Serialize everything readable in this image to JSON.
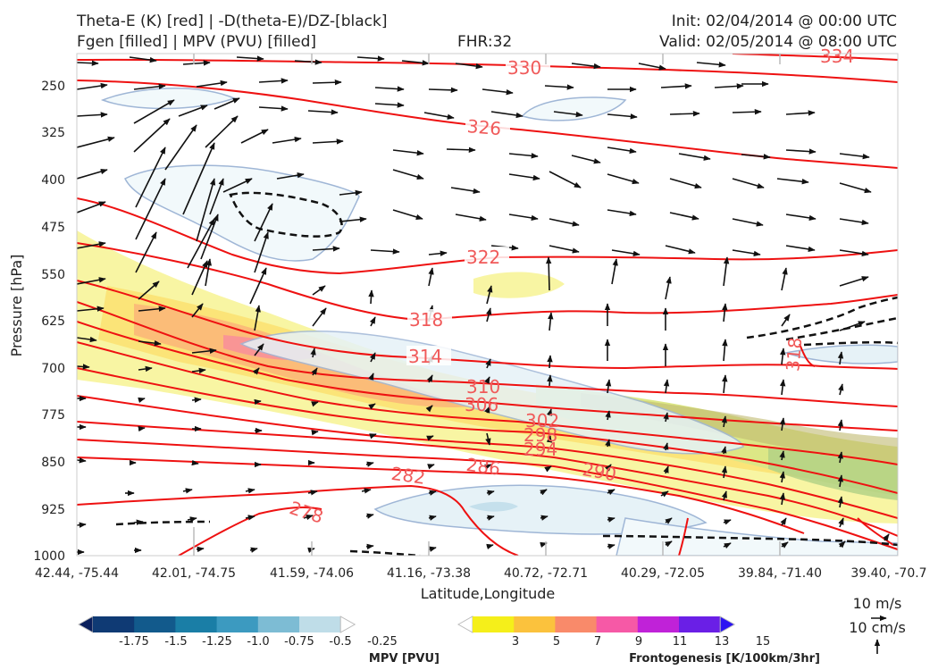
{
  "header": {
    "left_line1": "Theta-E (K) [red] | -D(theta-E)/DZ-[black]",
    "left_line2": "Fgen [filled] | MPV (PVU) [filled]",
    "center": "FHR:32",
    "right_line1": "Init: 02/04/2014 @ 00:00 UTC",
    "right_line2": "Valid: 02/05/2014 @ 08:00 UTC"
  },
  "chart_data": {
    "type": "cross-section",
    "ylabel": "Pressure [hPa]",
    "xlabel": "Latitude,Longitude",
    "yticks": [
      "250",
      "325",
      "400",
      "475",
      "550",
      "625",
      "700",
      "775",
      "850",
      "925",
      "1000"
    ],
    "ylim": [
      1000,
      200
    ],
    "xticks": [
      "42.44, -75.44",
      "42.01, -74.75",
      "41.59, -74.06",
      "41.16, -73.38",
      "40.72, -72.71",
      "40.29, -72.05",
      "39.84, -71.40",
      "39.40, -70.7"
    ],
    "theta_e_contour_labels": [
      "330",
      "334",
      "326",
      "322",
      "318",
      "314",
      "310",
      "306",
      "302",
      "298",
      "294",
      "290",
      "286",
      "282",
      "278",
      "318"
    ],
    "colors": {
      "theta_e": "#ee1111",
      "label": "#f05a5a",
      "stability": "#111111"
    },
    "mpv_colorbar": {
      "title": "MPV [PVU]",
      "labels": [
        "-1.75",
        "-1.5",
        "-1.25",
        "-1.0",
        "-0.75",
        "-0.5",
        "-0.25"
      ],
      "colors": [
        "#0a1f5c",
        "#0f3a74",
        "#125a8c",
        "#1a7ea6",
        "#3c9ac0",
        "#7dbcd4",
        "#bfdde8",
        "#ffffff"
      ]
    },
    "fgen_colorbar": {
      "title": "Frontogenesis [K/100km/3hr]",
      "labels": [
        "3",
        "5",
        "7",
        "9",
        "11",
        "13",
        "15"
      ],
      "colors": [
        "#ffffff",
        "#f5ef1a",
        "#fbc23d",
        "#f98a6a",
        "#f659a6",
        "#c022d8",
        "#6a1fe6",
        "#2b14f2"
      ]
    },
    "vector_reference": {
      "horizontal": "10 m/s",
      "vertical": "10 cm/s"
    }
  }
}
